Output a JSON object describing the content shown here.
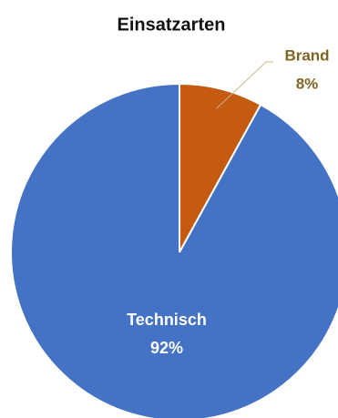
{
  "chart_data": {
    "type": "pie",
    "title": "Einsatzarten",
    "categories": [
      "Technisch",
      "Brand"
    ],
    "values": [
      92,
      8
    ],
    "value_labels": [
      "92%",
      "8%"
    ],
    "colors": [
      "#4472c4",
      "#c55a11"
    ]
  }
}
